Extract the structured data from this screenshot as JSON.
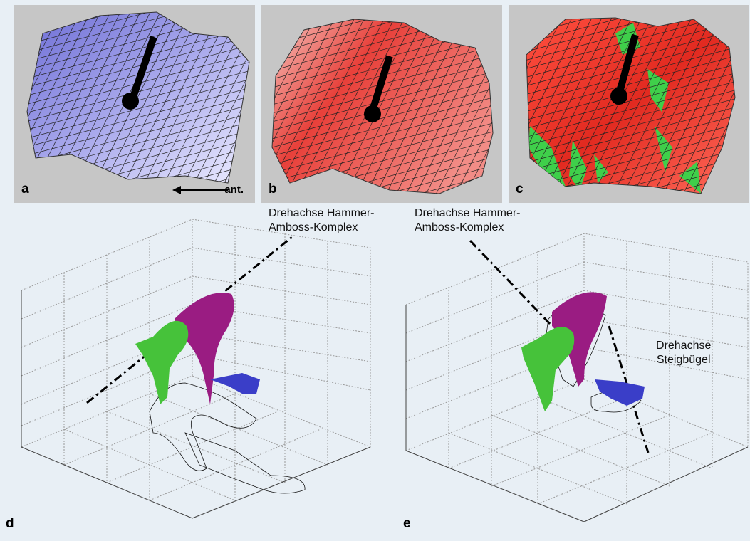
{
  "panels": {
    "a": {
      "label": "a",
      "surface_color": "#a9a9ec",
      "annotation": "ant."
    },
    "b": {
      "label": "b",
      "surface_color": "#e8403a"
    },
    "c": {
      "label": "c",
      "surface_color": "#e22a20",
      "accent_color": "#3fcf4a"
    }
  },
  "diagram_d": {
    "label": "d",
    "axis_label_line1": "Drehachse Hammer-",
    "axis_label_line2": "Amboss-Komplex"
  },
  "diagram_e": {
    "label": "e",
    "axis_label_line1": "Drehachse Hammer-",
    "axis_label_line2": "Amboss-Komplex",
    "stapes_label_line1": "Drehachse",
    "stapes_label_line2": "Steigbügel"
  },
  "colors": {
    "incus_green": "#46c23a",
    "malleus_magenta": "#9a1c82",
    "stapes_blue": "#3a3ec8",
    "mesh_black": "#111111"
  }
}
